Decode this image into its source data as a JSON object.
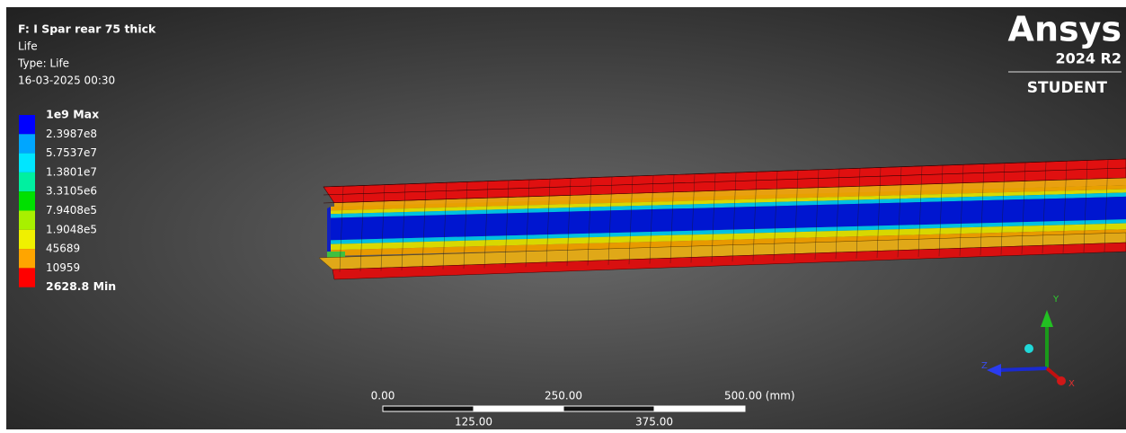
{
  "header": {
    "title": "F: I Spar rear 75 thick",
    "result": "Life",
    "type": "Type: Life",
    "timestamp": "16-03-2025 00:30"
  },
  "legend": {
    "labels": [
      "1e9 Max",
      "2.3987e8",
      "5.7537e7",
      "1.3801e7",
      "3.3105e6",
      "7.9408e5",
      "1.9048e5",
      "45689",
      "10959",
      "2628.8 Min"
    ],
    "colors": [
      "#0000ff",
      "#00a6ff",
      "#00e6ff",
      "#00f0a0",
      "#00e000",
      "#a8f000",
      "#f0f000",
      "#ffa500",
      "#ff0000"
    ]
  },
  "logo": {
    "brand": "Ansys",
    "version": "2024 R2",
    "edition": "STUDENT"
  },
  "scale_bar": {
    "top_labels": [
      "0.00",
      "250.00",
      "500.00 (mm)"
    ],
    "bottom_labels": [
      "125.00",
      "375.00"
    ]
  },
  "triad": {
    "x": "X",
    "y": "Y",
    "z": "Z"
  }
}
